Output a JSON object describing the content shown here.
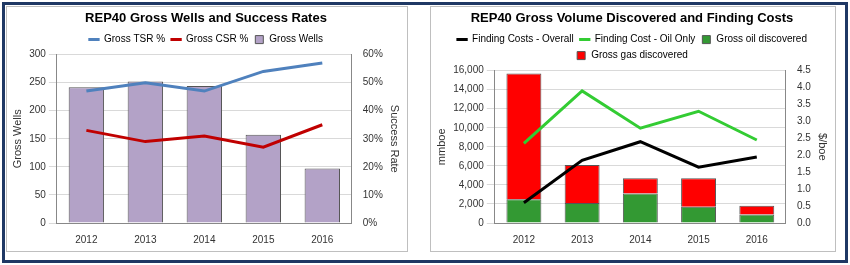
{
  "chart_data": [
    {
      "type": "bar",
      "title": "REP40 Gross Wells and Success Rates",
      "categories": [
        "2012",
        "2013",
        "2014",
        "2015",
        "2016"
      ],
      "series": [
        {
          "name": "Gross Wells",
          "type": "bar",
          "color": "#b3a2c7",
          "values": [
            242,
            252,
            244,
            157,
            97
          ]
        },
        {
          "name": "Gross TSR %",
          "type": "line",
          "axis": "y2",
          "color": "#4f81bd",
          "values": [
            47,
            50,
            47,
            54,
            57
          ]
        },
        {
          "name": "Gross CSR %",
          "type": "line",
          "axis": "y2",
          "color": "#c00000",
          "values": [
            33,
            29,
            31,
            27,
            35
          ]
        }
      ],
      "ylabel": "Gross Wells",
      "y2label": "Success Rate",
      "ylim": [
        0,
        300
      ],
      "yticks": [
        0,
        50,
        100,
        150,
        200,
        250,
        300
      ],
      "y2lim": [
        0,
        60
      ],
      "y2ticks": [
        {
          "value": 0,
          "label": "0%"
        },
        {
          "value": 10,
          "label": "10%"
        },
        {
          "value": 20,
          "label": "20%"
        },
        {
          "value": 30,
          "label": "30%"
        },
        {
          "value": 40,
          "label": "40%"
        },
        {
          "value": 50,
          "label": "50%"
        },
        {
          "value": 60,
          "label": "60%"
        }
      ],
      "legend": "top",
      "grid": true
    },
    {
      "type": "bar",
      "title": "REP40 Gross Volume Discovered and Finding Costs",
      "categories": [
        "2012",
        "2013",
        "2014",
        "2015",
        "2016"
      ],
      "series": [
        {
          "name": "Gross oil discovered",
          "type": "bar",
          "color": "#339933",
          "values": [
            2500,
            2100,
            3100,
            1700,
            900
          ]
        },
        {
          "name": "Gross gas discovered",
          "type": "bar",
          "color": "#ff0000",
          "values": [
            13200,
            4000,
            1600,
            3000,
            900
          ]
        },
        {
          "name": "Finding Costs - Overall",
          "type": "line",
          "axis": "y2",
          "color": "#000000",
          "values": [
            0.6,
            1.85,
            2.4,
            1.65,
            1.95
          ]
        },
        {
          "name": "Finding Cost - Oil Only",
          "type": "line",
          "axis": "y2",
          "color": "#33cc33",
          "values": [
            2.35,
            3.9,
            2.8,
            3.3,
            2.45
          ]
        }
      ],
      "ylabel": "mmboe",
      "y2label": "$/boe",
      "ylim": [
        0,
        16000
      ],
      "yticks": [
        0,
        {
          "value": 2000,
          "label": "2,000"
        },
        {
          "value": 4000,
          "label": "4,000"
        },
        {
          "value": 6000,
          "label": "6,000"
        },
        {
          "value": 8000,
          "label": "8,000"
        },
        {
          "value": 10000,
          "label": "10,000"
        },
        {
          "value": 12000,
          "label": "12,000"
        },
        {
          "value": 14000,
          "label": "14,000"
        },
        {
          "value": 16000,
          "label": "16,000"
        }
      ],
      "y2lim": [
        0,
        4.5
      ],
      "y2ticks": [
        {
          "value": 0,
          "label": "0.0"
        },
        0.5,
        {
          "value": 1,
          "label": "1.0"
        },
        1.5,
        {
          "value": 2,
          "label": "2.0"
        },
        2.5,
        {
          "value": 3,
          "label": "3.0"
        },
        3.5,
        {
          "value": 4,
          "label": "4.0"
        },
        4.5
      ],
      "legend": "top",
      "stacked": true,
      "grid": true
    }
  ]
}
